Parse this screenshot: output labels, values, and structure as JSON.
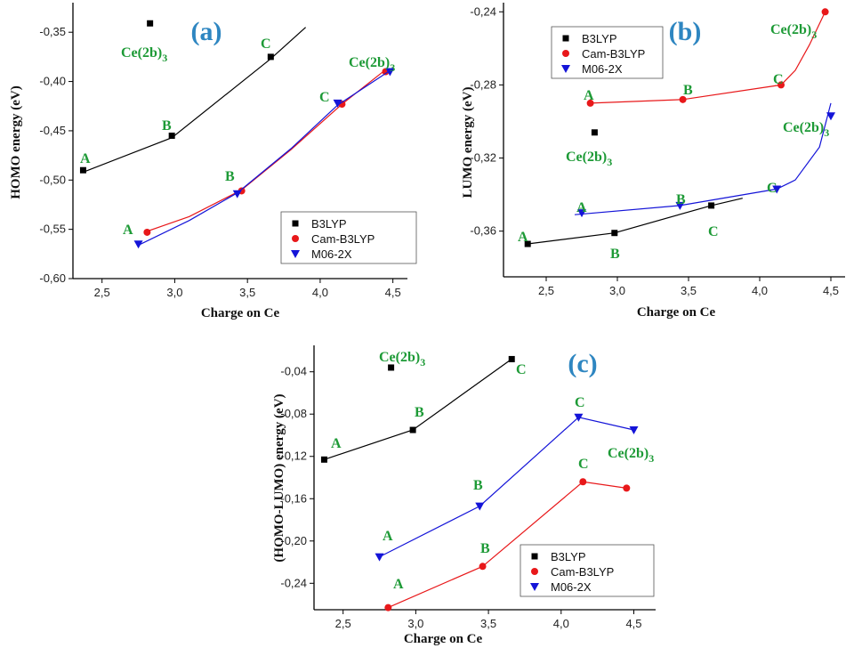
{
  "chart_data": [
    {
      "type": "scatter",
      "panel_label": "(a)",
      "xlabel": "Charge on Ce",
      "ylabel": "HOMO energy (eV)",
      "xlim": [
        2.3,
        4.6
      ],
      "ylim": [
        -0.6,
        -0.32
      ],
      "xticks": [
        2.5,
        3.0,
        3.5,
        4.0,
        4.5
      ],
      "xtick_labels": [
        "2,5",
        "3,0",
        "3,5",
        "4,0",
        "4,5"
      ],
      "yticks": [
        -0.6,
        -0.55,
        -0.5,
        -0.45,
        -0.4,
        -0.35
      ],
      "ytick_labels": [
        "-0,60",
        "-0,55",
        "-0,50",
        "-0,45",
        "-0,40",
        "-0,35"
      ],
      "legend": [
        "B3LYP",
        "Cam-B3LYP",
        "M06-2X"
      ],
      "legend_position": "lower-right",
      "series": [
        {
          "name": "B3LYP",
          "color": "#000000",
          "marker": "square",
          "x": [
            2.37,
            2.98,
            3.66,
            2.83
          ],
          "y": [
            -0.49,
            -0.455,
            -0.375,
            -0.341
          ],
          "labels": [
            "A",
            "B",
            "C",
            "Ce(2b)3"
          ],
          "fit": {
            "x": [
              2.37,
              2.98,
              3.66,
              3.9
            ],
            "y": [
              -0.492,
              -0.457,
              -0.377,
              -0.345
            ]
          }
        },
        {
          "name": "Cam-B3LYP",
          "color": "#e8181a",
          "marker": "circle",
          "x": [
            2.81,
            3.46,
            4.15,
            4.45
          ],
          "y": [
            -0.553,
            -0.511,
            -0.423,
            -0.39
          ],
          "labels": [
            "A",
            "B",
            "C",
            "Ce(2b)3"
          ],
          "fit": {
            "x": [
              2.79,
              3.1,
              3.46,
              3.8,
              4.15,
              4.45
            ],
            "y": [
              -0.553,
              -0.537,
              -0.51,
              -0.469,
              -0.423,
              -0.388
            ]
          }
        },
        {
          "name": "M06-2X",
          "color": "#1414d8",
          "marker": "triangle-down",
          "x": [
            2.75,
            3.43,
            4.12,
            4.48
          ],
          "y": [
            -0.565,
            -0.514,
            -0.422,
            -0.39
          ],
          "labels": [
            "A",
            "B",
            "C",
            "Ce(2b)3"
          ],
          "fit": {
            "x": [
              2.75,
              3.1,
              3.43,
              3.8,
              4.12,
              4.49
            ],
            "y": [
              -0.566,
              -0.541,
              -0.513,
              -0.468,
              -0.424,
              -0.388
            ]
          }
        }
      ]
    },
    {
      "type": "scatter",
      "panel_label": "(b)",
      "xlabel": "Charge on Ce",
      "ylabel": "LUMO energy (eV)",
      "xlim": [
        2.2,
        4.6
      ],
      "ylim": [
        -0.385,
        -0.235
      ],
      "xticks": [
        2.5,
        3.0,
        3.5,
        4.0,
        4.5
      ],
      "xtick_labels": [
        "2,5",
        "3,0",
        "3,5",
        "4,0",
        "4,5"
      ],
      "yticks": [
        -0.36,
        -0.32,
        -0.28,
        -0.24
      ],
      "ytick_labels": [
        "-0,36",
        "-0,32",
        "-0,28",
        "-0,24"
      ],
      "legend": [
        "B3LYP",
        "Cam-B3LYP",
        "M06-2X"
      ],
      "legend_position": "top-left",
      "series": [
        {
          "name": "B3LYP",
          "color": "#000000",
          "marker": "square",
          "x": [
            2.37,
            2.98,
            3.66,
            2.84
          ],
          "y": [
            -0.367,
            -0.361,
            -0.346,
            -0.306
          ],
          "labels": [
            "A",
            "B",
            "C",
            "Ce(2b)3"
          ],
          "fit": {
            "x": [
              2.37,
              2.98,
              3.66,
              3.88
            ],
            "y": [
              -0.367,
              -0.361,
              -0.346,
              -0.342
            ]
          }
        },
        {
          "name": "Cam-B3LYP",
          "color": "#e8181a",
          "marker": "circle",
          "x": [
            2.81,
            3.46,
            4.15,
            4.46
          ],
          "y": [
            -0.29,
            -0.288,
            -0.28,
            -0.24
          ],
          "labels": [
            "A",
            "B",
            "C",
            "Ce(2b)3"
          ],
          "fit": {
            "x": [
              2.81,
              3.46,
              4.15,
              4.25,
              4.35,
              4.46
            ],
            "y": [
              -0.29,
              -0.288,
              -0.28,
              -0.272,
              -0.258,
              -0.24
            ]
          }
        },
        {
          "name": "M06-2X",
          "color": "#1414d8",
          "marker": "triangle-down",
          "x": [
            2.75,
            3.44,
            4.12,
            4.5
          ],
          "y": [
            -0.35,
            -0.346,
            -0.337,
            -0.297
          ],
          "labels": [
            "A",
            "B",
            "C",
            "Ce(2b)3"
          ],
          "fit": {
            "x": [
              2.7,
              3.44,
              4.12,
              4.25,
              4.42,
              4.5
            ],
            "y": [
              -0.351,
              -0.346,
              -0.337,
              -0.332,
              -0.314,
              -0.29
            ]
          }
        }
      ]
    },
    {
      "type": "line",
      "panel_label": "(c)",
      "xlabel": "Charge on Ce",
      "ylabel": "(HOMO-LUMO) energy (eV)",
      "xlim": [
        2.3,
        4.65
      ],
      "ylim": [
        -0.265,
        -0.015
      ],
      "xticks": [
        2.5,
        3.0,
        3.5,
        4.0,
        4.5
      ],
      "xtick_labels": [
        "2,5",
        "3,0",
        "3,5",
        "4,0",
        "4,5"
      ],
      "yticks": [
        -0.24,
        -0.2,
        -0.16,
        -0.12,
        -0.08,
        -0.04
      ],
      "ytick_labels": [
        "-0,24",
        "-0,20",
        "-0,16",
        "-0,12",
        "-0,08",
        "-0,04"
      ],
      "legend": [
        "B3LYP",
        "Cam-B3LYP",
        "M06-2X"
      ],
      "legend_position": "bottom-right",
      "series": [
        {
          "name": "B3LYP",
          "color": "#000000",
          "marker": "square",
          "x": [
            2.37,
            2.98,
            3.66,
            2.83
          ],
          "y": [
            -0.123,
            -0.095,
            -0.028,
            -0.036
          ],
          "labels": [
            "A",
            "B",
            "C",
            "Ce(2b)3"
          ],
          "fit": {
            "x": [
              2.37,
              2.98,
              3.66
            ],
            "y": [
              -0.123,
              -0.095,
              -0.028
            ]
          }
        },
        {
          "name": "Cam-B3LYP",
          "color": "#e8181a",
          "marker": "circle",
          "x": [
            2.81,
            3.46,
            4.15,
            4.45
          ],
          "y": [
            -0.263,
            -0.224,
            -0.144,
            -0.15
          ],
          "labels": [
            "A",
            "B",
            "C",
            ""
          ],
          "fit": {
            "x": [
              2.81,
              3.46,
              4.15,
              4.45
            ],
            "y": [
              -0.263,
              -0.224,
              -0.144,
              -0.15
            ]
          }
        },
        {
          "name": "M06-2X",
          "color": "#1414d8",
          "marker": "triangle-down",
          "x": [
            2.75,
            3.44,
            4.12,
            4.5
          ],
          "y": [
            -0.215,
            -0.167,
            -0.083,
            -0.095
          ],
          "labels": [
            "A",
            "B",
            "C",
            "Ce(2b)3"
          ],
          "fit": {
            "x": [
              2.75,
              3.44,
              4.12,
              4.5
            ],
            "y": [
              -0.215,
              -0.167,
              -0.083,
              -0.095
            ]
          }
        }
      ]
    }
  ]
}
